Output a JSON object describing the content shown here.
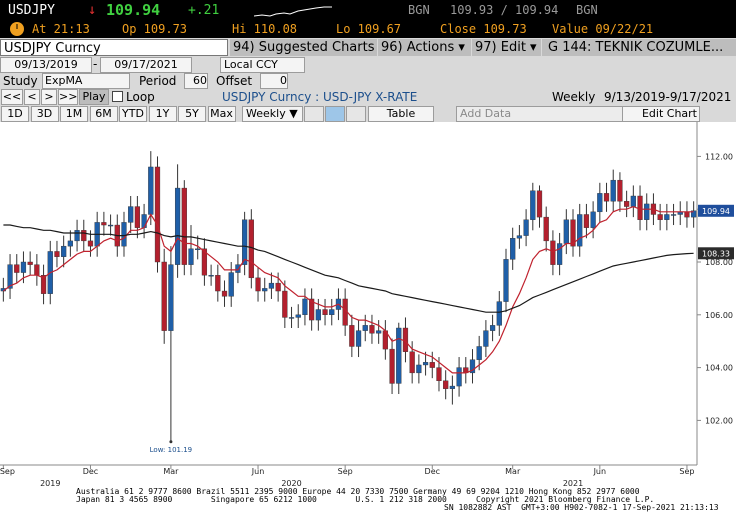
{
  "header": {
    "ticker": "USDJPY",
    "direction": "↓",
    "last": "109.94",
    "change": "+.21",
    "bid_src": "BGN",
    "bid_ask": "109.93 / 109.94",
    "ask_src": "BGN",
    "time": "At 21:13",
    "open": "Op 109.73",
    "high": "Hi 110.08",
    "low": "Lo 109.67",
    "close": "Close 109.73",
    "value": "Value 09/22/21"
  },
  "toolbar": {
    "security": "USDJPY Curncy",
    "suggested": "94) Suggested Charts",
    "actions": "96) Actions ▾",
    "edit": "97) Edit ▾",
    "page": "G 144: TEKNIK COZUMLE...",
    "start": "09/13/2019",
    "dash": "-",
    "end": "09/17/2021",
    "currency": "Local CCY",
    "study_label": "Study",
    "study": "ExpMA",
    "period_label": "Period",
    "period": "60",
    "offset_label": "Offset",
    "offset": "0",
    "nav": [
      "<<",
      "<",
      ">",
      ">>"
    ],
    "play": "Play",
    "loop": "Loop",
    "description": "USDJPY Curncy : USD-JPY X-RATE",
    "freq": "Weekly",
    "range": "9/13/2019-9/17/2021",
    "periods": [
      "1D",
      "3D",
      "1M",
      "6M",
      "YTD",
      "1Y",
      "5Y",
      "Max"
    ],
    "freq_menu": "Weekly ▼",
    "table": "Table",
    "add_data": "Add Data",
    "edit_chart": "Edit Chart"
  },
  "chart_data": {
    "type": "candlestick",
    "up_color": "#1f5fa8",
    "down_color": "#b3202e",
    "categories": [
      "Sep",
      null,
      null,
      null,
      null,
      null,
      null,
      null,
      null,
      null,
      null,
      null,
      null,
      "Dec",
      null,
      null,
      null,
      null,
      null,
      null,
      null,
      null,
      null,
      null,
      null,
      "Mar",
      null,
      null,
      null,
      null,
      null,
      null,
      null,
      null,
      null,
      null,
      null,
      null,
      "Jun",
      null,
      null,
      null,
      null,
      null,
      null,
      null,
      null,
      null,
      null,
      null,
      null,
      "Sep",
      null,
      null,
      null,
      null,
      null,
      null,
      null,
      null,
      null,
      null,
      null,
      null,
      "Dec",
      null,
      null,
      null,
      null,
      null,
      null,
      null,
      null,
      null,
      null,
      null,
      "Mar",
      null,
      null,
      null,
      null,
      null,
      null,
      null,
      null,
      null,
      null,
      null,
      null,
      "Jun",
      null,
      null,
      null,
      null,
      null,
      null,
      null,
      null,
      null,
      null,
      null,
      null,
      "Sep",
      null
    ],
    "year_labels": [
      "2019",
      "2020",
      "2021"
    ],
    "open": [
      106.9,
      107.0,
      107.9,
      107.6,
      108.0,
      107.9,
      107.5,
      106.8,
      108.4,
      108.2,
      108.6,
      108.8,
      109.2,
      108.8,
      108.6,
      109.5,
      109.4,
      109.4,
      108.6,
      109.5,
      110.1,
      109.3,
      109.8,
      111.6,
      108.0,
      105.4,
      107.9,
      110.8,
      107.9,
      108.5,
      108.5,
      107.5,
      107.5,
      106.9,
      106.7,
      107.6,
      107.9,
      109.6,
      107.4,
      106.9,
      107.0,
      107.2,
      106.9,
      105.9,
      105.9,
      106.0,
      106.6,
      105.8,
      106.2,
      106.0,
      106.2,
      106.6,
      105.6,
      104.8,
      105.4,
      105.6,
      105.3,
      105.4,
      104.7,
      103.4,
      105.5,
      104.6,
      103.8,
      104.1,
      104.2,
      104.0,
      103.5,
      103.2,
      103.3,
      104.0,
      103.8,
      104.3,
      104.8,
      105.4,
      105.6,
      106.5,
      108.1,
      108.9,
      109.0,
      109.6,
      110.7,
      109.7,
      108.8,
      107.9,
      108.7,
      109.6,
      108.6,
      109.8,
      109.3,
      109.9,
      110.6,
      110.3,
      111.1,
      110.3,
      110.1,
      110.5,
      109.6,
      110.2,
      109.8,
      109.6,
      109.8,
      109.8,
      109.9,
      109.7
    ],
    "high": [
      107.4,
      108.3,
      108.3,
      108.4,
      108.4,
      108.3,
      107.9,
      108.8,
      108.8,
      109.0,
      109.2,
      109.6,
      109.6,
      109.2,
      109.9,
      109.9,
      109.8,
      109.8,
      109.9,
      110.5,
      110.5,
      110.2,
      112.2,
      112.0,
      108.5,
      108.6,
      111.7,
      111.1,
      109.4,
      109.0,
      108.9,
      107.9,
      107.9,
      107.3,
      108.0,
      108.3,
      109.9,
      110.0,
      107.8,
      107.4,
      107.6,
      107.6,
      107.3,
      106.3,
      106.4,
      107.0,
      107.0,
      106.6,
      106.6,
      106.6,
      107.0,
      107.0,
      106.0,
      105.8,
      106.0,
      106.0,
      105.8,
      105.8,
      105.1,
      105.7,
      105.9,
      105.0,
      104.5,
      104.6,
      104.6,
      104.4,
      103.9,
      103.7,
      104.4,
      104.4,
      104.7,
      105.2,
      105.8,
      106.0,
      106.9,
      108.5,
      109.3,
      109.4,
      110.0,
      111.0,
      110.9,
      110.1,
      109.2,
      109.1,
      110.0,
      110.0,
      110.2,
      110.2,
      110.3,
      111.0,
      111.0,
      111.5,
      111.4,
      110.7,
      110.9,
      110.9,
      110.6,
      110.6,
      110.2,
      110.2,
      110.2,
      110.3,
      110.3,
      110.3
    ],
    "low": [
      106.5,
      106.6,
      107.2,
      107.2,
      107.5,
      107.1,
      106.4,
      106.4,
      107.8,
      107.8,
      108.2,
      108.4,
      108.4,
      108.2,
      108.2,
      109.0,
      109.0,
      108.2,
      108.2,
      109.1,
      108.9,
      108.9,
      109.4,
      107.6,
      104.9,
      101.19,
      107.4,
      107.5,
      107.5,
      108.1,
      107.1,
      107.1,
      106.5,
      106.3,
      106.3,
      107.2,
      107.5,
      107.0,
      106.5,
      106.5,
      106.6,
      106.5,
      105.5,
      105.5,
      105.5,
      105.6,
      105.4,
      105.4,
      105.6,
      105.6,
      105.8,
      105.2,
      104.4,
      104.4,
      105.0,
      104.9,
      104.9,
      104.3,
      103.0,
      103.0,
      104.2,
      103.4,
      103.4,
      103.7,
      103.6,
      103.1,
      102.8,
      102.6,
      102.9,
      103.4,
      103.4,
      103.9,
      104.4,
      105.0,
      105.2,
      106.1,
      107.7,
      108.5,
      108.6,
      109.2,
      109.3,
      108.4,
      107.5,
      107.5,
      108.3,
      108.2,
      108.2,
      108.9,
      108.9,
      109.5,
      109.9,
      109.9,
      109.9,
      109.7,
      109.7,
      109.2,
      109.2,
      109.4,
      109.2,
      109.2,
      109.4,
      109.4,
      109.3,
      109.3
    ],
    "close": [
      107.0,
      107.9,
      107.6,
      108.0,
      107.9,
      107.5,
      106.8,
      108.4,
      108.2,
      108.6,
      108.8,
      109.2,
      108.8,
      108.6,
      109.5,
      109.4,
      109.4,
      108.6,
      109.5,
      110.1,
      109.3,
      109.8,
      111.6,
      108.0,
      105.4,
      107.9,
      110.8,
      107.9,
      108.5,
      108.5,
      107.5,
      107.5,
      106.9,
      106.7,
      107.6,
      107.9,
      109.6,
      107.4,
      106.9,
      107.0,
      107.2,
      106.9,
      105.9,
      105.9,
      106.0,
      106.6,
      105.8,
      106.2,
      106.0,
      106.2,
      106.6,
      105.6,
      104.8,
      105.4,
      105.6,
      105.3,
      105.4,
      104.7,
      103.4,
      105.5,
      104.6,
      103.8,
      104.1,
      104.2,
      104.0,
      103.5,
      103.2,
      103.3,
      104.0,
      103.8,
      104.3,
      104.8,
      105.4,
      105.6,
      106.5,
      108.1,
      108.9,
      109.0,
      109.6,
      110.7,
      109.7,
      108.8,
      107.9,
      108.7,
      109.6,
      108.6,
      109.8,
      109.3,
      109.9,
      110.6,
      110.3,
      111.1,
      110.3,
      110.1,
      110.5,
      109.6,
      110.2,
      109.8,
      109.6,
      109.8,
      109.8,
      109.9,
      109.7,
      109.94
    ],
    "overlays": [
      {
        "color": "#c0222e",
        "values": [
          106.9,
          107.1,
          107.2,
          107.4,
          107.5,
          107.5,
          107.4,
          107.6,
          107.7,
          107.9,
          108.1,
          108.3,
          108.4,
          108.4,
          108.6,
          108.8,
          108.9,
          108.8,
          108.9,
          109.2,
          109.2,
          109.3,
          109.8,
          109.4,
          108.6,
          108.4,
          108.9,
          108.7,
          108.7,
          108.6,
          108.4,
          108.2,
          108.0,
          107.7,
          107.7,
          107.7,
          108.1,
          108.0,
          107.8,
          107.6,
          107.5,
          107.4,
          107.1,
          106.9,
          106.7,
          106.7,
          106.5,
          106.4,
          106.3,
          106.3,
          106.4,
          106.2,
          105.9,
          105.8,
          105.8,
          105.7,
          105.6,
          105.4,
          105.0,
          105.1,
          105.0,
          104.7,
          104.6,
          104.5,
          104.4,
          104.2,
          104.0,
          103.8,
          103.8,
          103.8,
          103.9,
          104.1,
          104.3,
          104.6,
          105.0,
          105.6,
          106.3,
          106.8,
          107.4,
          108.1,
          108.4,
          108.5,
          108.4,
          108.5,
          108.7,
          108.7,
          108.9,
          109.0,
          109.2,
          109.5,
          109.6,
          109.9,
          110.0,
          110.0,
          110.1,
          110.0,
          110.0,
          110.0,
          109.9,
          109.9,
          109.9,
          109.9,
          109.9,
          109.9
        ]
      },
      {
        "color": "#1a1a1a",
        "values": [
          109.4,
          109.4,
          109.35,
          109.3,
          109.3,
          109.25,
          109.2,
          109.2,
          109.15,
          109.1,
          109.1,
          109.1,
          109.1,
          109.05,
          109.05,
          109.05,
          109.05,
          109.0,
          109.0,
          109.05,
          109.05,
          109.1,
          109.15,
          109.1,
          109.0,
          108.95,
          109.0,
          108.95,
          108.95,
          108.9,
          108.85,
          108.8,
          108.75,
          108.7,
          108.65,
          108.6,
          108.6,
          108.55,
          108.45,
          108.4,
          108.3,
          108.2,
          108.1,
          108.0,
          107.9,
          107.8,
          107.7,
          107.6,
          107.5,
          107.45,
          107.4,
          107.3,
          107.2,
          107.1,
          107.05,
          107.0,
          106.95,
          106.9,
          106.8,
          106.75,
          106.7,
          106.65,
          106.6,
          106.55,
          106.5,
          106.45,
          106.4,
          106.35,
          106.3,
          106.25,
          106.2,
          106.15,
          106.1,
          106.1,
          106.1,
          106.15,
          106.25,
          106.35,
          106.5,
          106.65,
          106.75,
          106.85,
          106.95,
          107.05,
          107.15,
          107.25,
          107.35,
          107.45,
          107.55,
          107.65,
          107.75,
          107.85,
          107.9,
          107.95,
          108.0,
          108.05,
          108.1,
          108.15,
          108.2,
          108.25,
          108.28,
          108.3,
          108.32,
          108.33
        ]
      }
    ],
    "ylim": [
      100.5,
      113.0
    ],
    "yticks": [
      {
        "value": 102,
        "label": "102.00"
      },
      {
        "value": 104,
        "label": "104.00"
      },
      {
        "value": 106,
        "label": "106.00"
      },
      {
        "value": 108,
        "label": "108.00"
      },
      {
        "value": 110,
        "label": "110.00"
      },
      {
        "value": 112,
        "label": "112.00"
      }
    ],
    "price_tags": [
      {
        "value": 109.94,
        "label": "109.94",
        "color": "#1f4e9c"
      },
      {
        "value": 108.33,
        "label": "108.33",
        "color": "#2b2b2b"
      }
    ],
    "annotation": {
      "text": "Low: 101.19",
      "value": 101.19
    }
  },
  "footer": {
    "line1": "Australia 61 2 9777 8600 Brazil 5511 2395 9000 Europe 44 20 7330 7500 Germany 49 69 9204 1210 Hong Kong 852 2977 6000",
    "line2a": "Japan 81 3 4565 8900        Singapore 65 6212 1000        U.S. 1 212 318 2000",
    "line2b": "Copyright 2021 Bloomberg Finance L.P.",
    "line3": "SN 1082882 AST  GMT+3:00 H902-7082-1 17-Sep-2021 21:13:13"
  }
}
